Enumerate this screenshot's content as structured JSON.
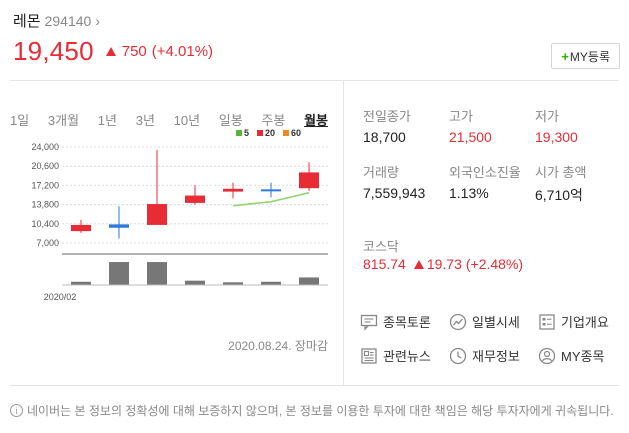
{
  "stock": {
    "name": "레몬",
    "code": "294140",
    "price": "19,450",
    "change": "750",
    "change_pct": "(+4.01%)"
  },
  "my_button": {
    "plus": "+",
    "label": "MY등록"
  },
  "tabs": [
    "1일",
    "3개월",
    "1년",
    "3년",
    "10년",
    "일봉",
    "주봉",
    "월봉"
  ],
  "active_tab": "월봉",
  "legend": [
    {
      "label": "5",
      "color": "#5ab43c"
    },
    {
      "label": "20",
      "color": "#e82c36"
    },
    {
      "label": "60",
      "color": "#f0881e"
    }
  ],
  "chart_data": {
    "type": "candlestick",
    "y_ticks": [
      "24,000",
      "20,600",
      "17,200",
      "13,800",
      "10,400",
      "7,000"
    ],
    "y_tick_values": [
      24000,
      20600,
      17200,
      13800,
      10400,
      7000
    ],
    "x_label": "2020/02",
    "candles": [
      {
        "open": 10200,
        "close": 9100,
        "high": 11100,
        "low": 8800,
        "color": "#e82c36"
      },
      {
        "open": 9700,
        "close": 10300,
        "high": 13500,
        "low": 7800,
        "color": "#2f7ad9"
      },
      {
        "open": 10200,
        "close": 13900,
        "high": 23500,
        "low": 10200,
        "color": "#e82c36"
      },
      {
        "open": 14100,
        "close": 15400,
        "high": 17200,
        "low": 13800,
        "color": "#e82c36"
      },
      {
        "open": 16100,
        "close": 16600,
        "high": 17700,
        "low": 14900,
        "color": "#e82c36"
      },
      {
        "open": 16300,
        "close": 16500,
        "high": 17700,
        "low": 15100,
        "color": "#2f7ad9"
      },
      {
        "open": 16700,
        "close": 19500,
        "high": 21300,
        "low": 16200,
        "color": "#e82c36"
      }
    ],
    "ma5": [
      null,
      null,
      null,
      null,
      13600,
      14300,
      15900
    ],
    "volume": [
      0.12,
      0.85,
      0.85,
      0.16,
      0.1,
      0.12,
      0.28
    ]
  },
  "chart_date": "2020.08.24. 장마감",
  "stats": [
    {
      "label": "전일종가",
      "value": "18,700",
      "red": false
    },
    {
      "label": "고가",
      "value": "21,500",
      "red": true
    },
    {
      "label": "저가",
      "value": "19,300",
      "red": true
    },
    {
      "label": "거래량",
      "value": "7,559,943",
      "red": false
    },
    {
      "label": "외국인소진율",
      "value": "1.13%",
      "red": false
    },
    {
      "label": "시가 총액",
      "value": "6,710억",
      "red": false
    }
  ],
  "kosdaq": {
    "label": "코스닥",
    "value": "815.74",
    "change": "19.73",
    "pct": "(+2.48%)"
  },
  "links": [
    {
      "label": "종목토론",
      "icon": "discussion-icon"
    },
    {
      "label": "일별시세",
      "icon": "trend-icon"
    },
    {
      "label": "기업개요",
      "icon": "company-icon"
    },
    {
      "label": "관련뉴스",
      "icon": "news-icon"
    },
    {
      "label": "재무정보",
      "icon": "clock-icon"
    },
    {
      "label": "MY종목",
      "icon": "person-icon"
    }
  ],
  "notice": "네이버는 본 정보의 정확성에 대해 보증하지 않으며, 본 정보를 이용한 투자에 대한 책임은 해당 투자자에게 귀속됩니다."
}
